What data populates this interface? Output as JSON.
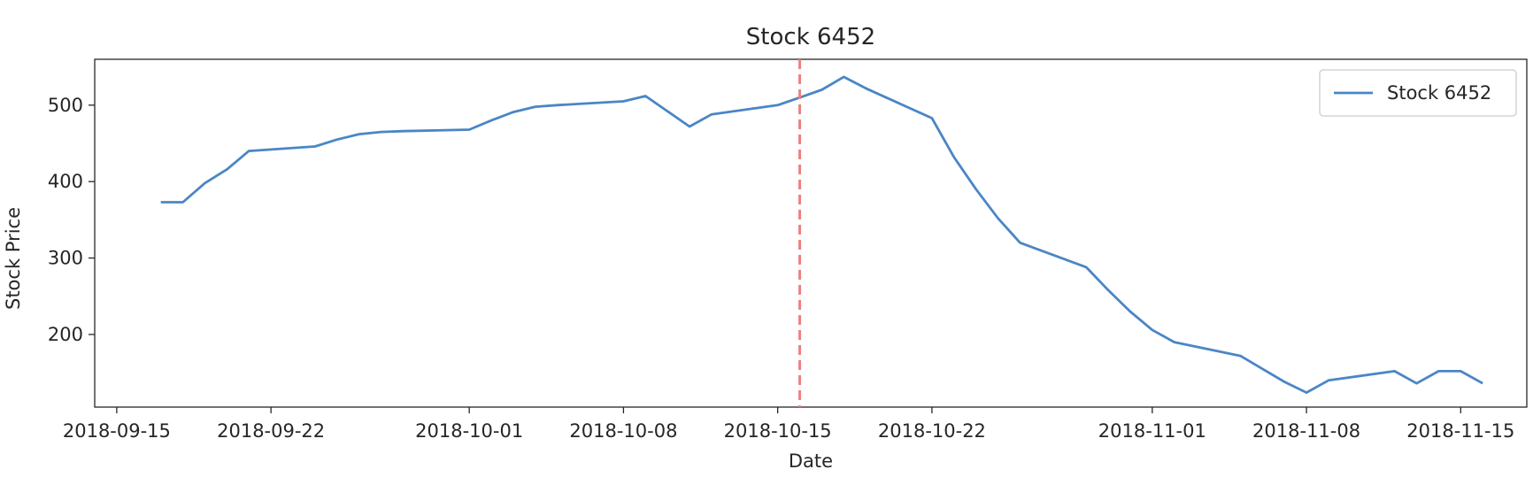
{
  "chart_data": {
    "type": "line",
    "title": "Stock 6452",
    "xlabel": "Date",
    "ylabel": "Stock Price",
    "x_ticks": [
      "2018-09-15",
      "2018-09-22",
      "2018-10-01",
      "2018-10-08",
      "2018-10-15",
      "2018-10-22",
      "2018-11-01",
      "2018-11-08",
      "2018-11-15"
    ],
    "y_ticks": [
      200,
      300,
      400,
      500
    ],
    "xlim": [
      "2018-09-14",
      "2018-11-18"
    ],
    "ylim": [
      105,
      560
    ],
    "grid": false,
    "legend_position": "top-right",
    "series": [
      {
        "name": "Stock 6452",
        "color": "#4a86c5",
        "x": [
          "2018-09-17",
          "2018-09-18",
          "2018-09-19",
          "2018-09-20",
          "2018-09-21",
          "2018-09-24",
          "2018-09-25",
          "2018-09-26",
          "2018-09-27",
          "2018-09-28",
          "2018-10-01",
          "2018-10-02",
          "2018-10-03",
          "2018-10-04",
          "2018-10-05",
          "2018-10-08",
          "2018-10-09",
          "2018-10-11",
          "2018-10-12",
          "2018-10-15",
          "2018-10-16",
          "2018-10-17",
          "2018-10-18",
          "2018-10-19",
          "2018-10-22",
          "2018-10-23",
          "2018-10-24",
          "2018-10-25",
          "2018-10-26",
          "2018-10-29",
          "2018-10-30",
          "2018-10-31",
          "2018-11-01",
          "2018-11-02",
          "2018-11-05",
          "2018-11-06",
          "2018-11-07",
          "2018-11-08",
          "2018-11-09",
          "2018-11-12",
          "2018-11-13",
          "2018-11-14",
          "2018-11-15",
          "2018-11-16"
        ],
        "values": [
          373,
          373,
          398,
          416,
          440,
          446,
          455,
          462,
          465,
          466,
          468,
          480,
          491,
          498,
          500,
          505,
          512,
          472,
          488,
          500,
          510,
          520,
          537,
          522,
          483,
          432,
          390,
          352,
          320,
          288,
          258,
          230,
          206,
          190,
          172,
          155,
          138,
          124,
          140,
          152,
          136,
          152,
          152,
          136
        ]
      }
    ],
    "annotations": [
      {
        "type": "vertical-line",
        "x": "2018-10-16",
        "color": "#f08080",
        "style": "dashed"
      }
    ]
  }
}
